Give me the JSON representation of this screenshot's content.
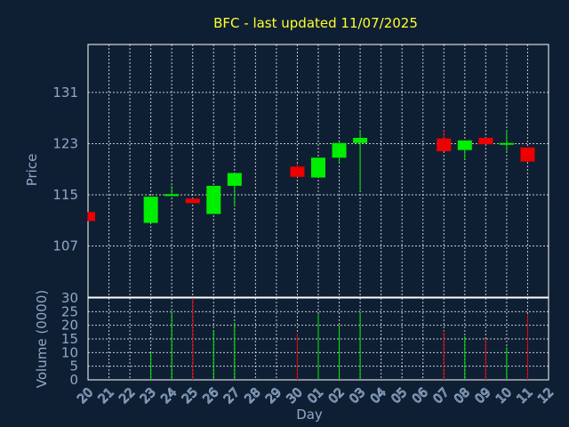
{
  "chart_data": {
    "type": "candlestick",
    "title": "BFC - last updated 11/07/2025",
    "xlabel": "Day",
    "ylabel": "Price",
    "ylabel_volume": "Volume (0000)",
    "x_ticks": [
      "20",
      "21",
      "22",
      "23",
      "24",
      "25",
      "26",
      "27",
      "28",
      "29",
      "30",
      "01",
      "02",
      "03",
      "04",
      "05",
      "06",
      "07",
      "08",
      "09",
      "10",
      "11",
      "12"
    ],
    "price_ticks": [
      107,
      115,
      123,
      131
    ],
    "volume_ticks": [
      0,
      5,
      10,
      15,
      20,
      25,
      30
    ],
    "price_range": [
      99,
      138.5
    ],
    "volume_range": [
      0,
      30
    ],
    "grid": true,
    "colors": {
      "up": "#00ee00",
      "down": "#ee0000",
      "title": "#ffff33",
      "axis": "#8fa8c8",
      "background": "#0f1f33"
    },
    "candles": [
      {
        "day": "20",
        "open": 112.3,
        "high": 112.3,
        "low": 110.9,
        "close": 110.9,
        "volume": 0
      },
      {
        "day": "23",
        "open": 110.6,
        "high": 114.7,
        "low": 110.6,
        "close": 114.7,
        "volume": 10
      },
      {
        "day": "24",
        "open": 114.8,
        "high": 116.4,
        "low": 114.8,
        "close": 115.1,
        "volume": 25
      },
      {
        "day": "25",
        "open": 114.4,
        "high": 114.4,
        "low": 113.7,
        "close": 113.7,
        "volume": 30
      },
      {
        "day": "26",
        "open": 112.0,
        "high": 116.4,
        "low": 112.0,
        "close": 116.4,
        "volume": 18
      },
      {
        "day": "27",
        "open": 116.4,
        "high": 118.4,
        "low": 113.3,
        "close": 118.4,
        "volume": 21
      },
      {
        "day": "30",
        "open": 119.4,
        "high": 119.9,
        "low": 117.8,
        "close": 117.8,
        "volume": 17
      },
      {
        "day": "01",
        "open": 117.7,
        "high": 120.8,
        "low": 117.7,
        "close": 120.8,
        "volume": 24
      },
      {
        "day": "02",
        "open": 120.8,
        "high": 123.1,
        "low": 120.0,
        "close": 123.1,
        "volume": 20
      },
      {
        "day": "03",
        "open": 123.1,
        "high": 125.1,
        "low": 115.6,
        "close": 123.9,
        "volume": 25
      },
      {
        "day": "07",
        "open": 123.8,
        "high": 125.1,
        "low": 121.8,
        "close": 121.8,
        "volume": 18
      },
      {
        "day": "08",
        "open": 122.0,
        "high": 123.5,
        "low": 120.5,
        "close": 123.5,
        "volume": 16
      },
      {
        "day": "09",
        "open": 123.9,
        "high": 123.9,
        "low": 122.9,
        "close": 122.9,
        "volume": 15
      },
      {
        "day": "10",
        "open": 122.9,
        "high": 125.1,
        "low": 121.7,
        "close": 123.1,
        "volume": 12
      },
      {
        "day": "11",
        "open": 122.4,
        "high": 122.4,
        "low": 120.2,
        "close": 120.2,
        "volume": 24
      }
    ]
  }
}
